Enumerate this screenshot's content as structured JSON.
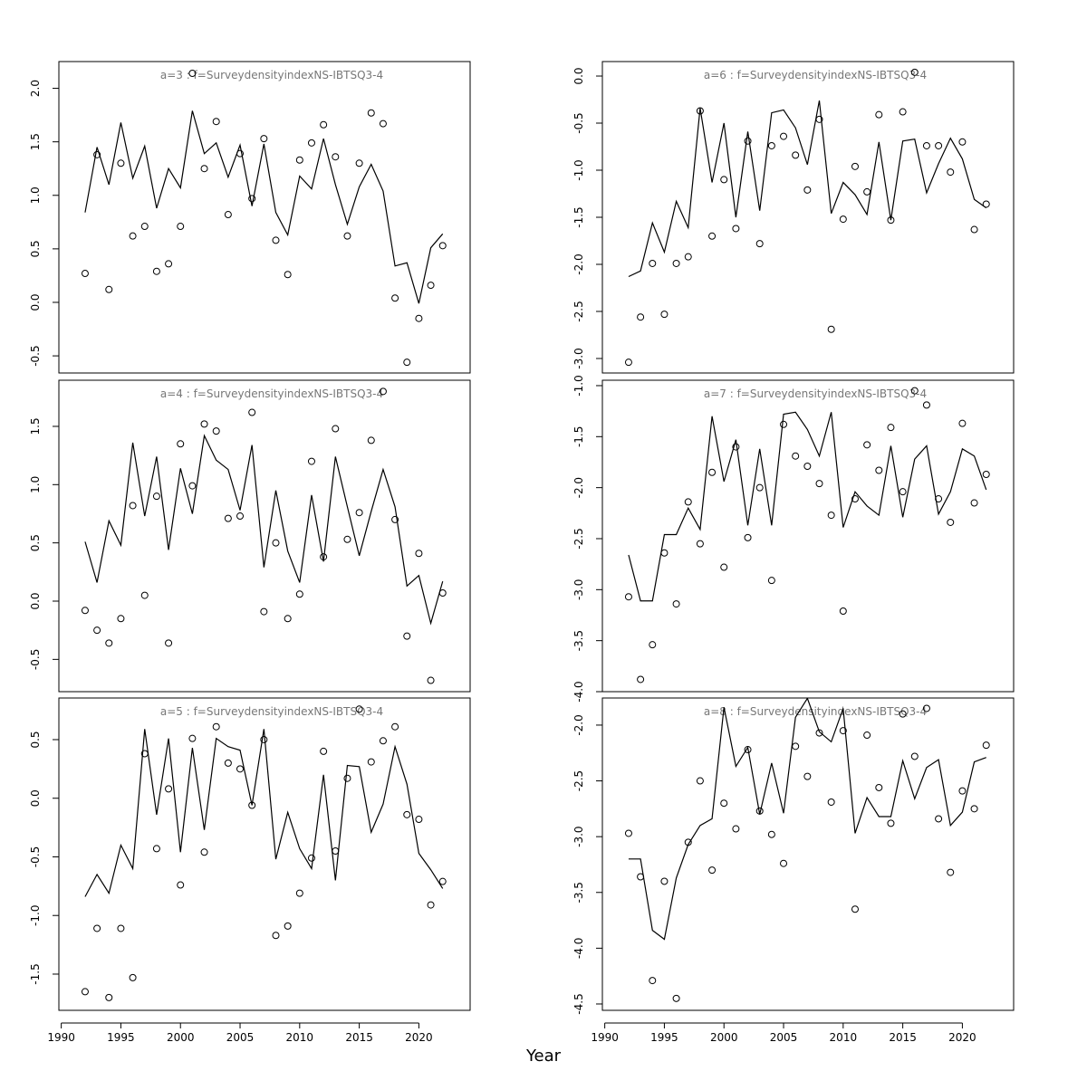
{
  "x_label": "Year",
  "chart_data": [
    {
      "type": "line",
      "title": "a=3  :  f=SurveydensityindexNS-IBTSQ3-4",
      "x": [
        1992,
        1993,
        1994,
        1995,
        1996,
        1997,
        1998,
        1999,
        2000,
        2001,
        2002,
        2003,
        2004,
        2005,
        2006,
        2007,
        2008,
        2009,
        2010,
        2011,
        2012,
        2013,
        2014,
        2015,
        2016,
        2017,
        2018,
        2019,
        2020,
        2021,
        2022
      ],
      "xlim": [
        1989.8,
        2024.3
      ],
      "ylim": [
        -0.66,
        2.25
      ],
      "yticks": [
        -0.5,
        {
          "value": 0,
          "label": "0.0"
        },
        0.5,
        {
          "value": 1,
          "label": "1.0"
        },
        1.5,
        {
          "value": 2,
          "label": "2.0"
        }
      ],
      "series": [
        {
          "style": "line",
          "color": "#000000",
          "values": [
            0.84,
            1.45,
            1.1,
            1.68,
            1.16,
            1.46,
            0.88,
            1.25,
            1.07,
            1.79,
            1.39,
            1.49,
            1.17,
            1.47,
            0.9,
            1.48,
            0.84,
            0.63,
            1.18,
            1.06,
            1.53,
            1.1,
            0.73,
            1.08,
            1.29,
            1.04,
            0.34,
            0.37,
            -0.01,
            0.51,
            0.64
          ]
        },
        {
          "style": "points",
          "color": "#000000",
          "values": [
            0.27,
            1.38,
            0.12,
            1.3,
            0.62,
            0.71,
            0.29,
            0.36,
            0.71,
            2.14,
            1.25,
            1.69,
            0.82,
            1.39,
            0.97,
            1.53,
            0.58,
            0.26,
            1.33,
            1.49,
            1.66,
            1.36,
            0.62,
            1.3,
            1.77,
            1.67,
            0.04,
            -0.56,
            -0.15,
            0.16,
            0.53
          ]
        }
      ]
    },
    {
      "type": "line",
      "title": "a=4  :  f=SurveydensityindexNS-IBTSQ3-4",
      "x": [
        1992,
        1993,
        1994,
        1995,
        1996,
        1997,
        1998,
        1999,
        2000,
        2001,
        2002,
        2003,
        2004,
        2005,
        2006,
        2007,
        2008,
        2009,
        2010,
        2011,
        2012,
        2013,
        2014,
        2015,
        2016,
        2017,
        2018,
        2019,
        2020,
        2021,
        2022
      ],
      "xlim": [
        1989.8,
        2024.3
      ],
      "ylim": [
        -0.777,
        1.896
      ],
      "yticks": [
        -0.5,
        {
          "value": 0,
          "label": "0.0"
        },
        0.5,
        {
          "value": 1,
          "label": "1.0"
        },
        1.5
      ],
      "series": [
        {
          "style": "line",
          "color": "#000000",
          "values": [
            0.51,
            0.16,
            0.69,
            0.48,
            1.36,
            0.73,
            1.24,
            0.44,
            1.14,
            0.75,
            1.42,
            1.21,
            1.13,
            0.78,
            1.34,
            0.29,
            0.95,
            0.43,
            0.16,
            0.91,
            0.34,
            1.24,
            0.81,
            0.39,
            0.77,
            1.13,
            0.81,
            0.13,
            0.22,
            -0.19,
            0.17
          ]
        },
        {
          "style": "points",
          "color": "#000000",
          "values": [
            -0.08,
            -0.25,
            -0.36,
            -0.15,
            0.82,
            0.05,
            0.9,
            -0.36,
            1.35,
            0.99,
            1.52,
            1.46,
            0.71,
            0.73,
            1.62,
            -0.09,
            0.5,
            -0.15,
            0.06,
            1.2,
            0.38,
            1.48,
            0.53,
            0.76,
            1.38,
            1.8,
            0.7,
            -0.3,
            0.41,
            -0.68,
            0.07
          ]
        }
      ]
    },
    {
      "type": "line",
      "title": "a=5  :  f=SurveydensityindexNS-IBTSQ3-4",
      "x": [
        1992,
        1993,
        1994,
        1995,
        1996,
        1997,
        1998,
        1999,
        2000,
        2001,
        2002,
        2003,
        2004,
        2005,
        2006,
        2007,
        2008,
        2009,
        2010,
        2011,
        2012,
        2013,
        2014,
        2015,
        2016,
        2017,
        2018,
        2019,
        2020,
        2021,
        2022
      ],
      "xlim": [
        1989.8,
        2024.3
      ],
      "ylim": [
        -1.809,
        0.855
      ],
      "xticks": [
        1990,
        1995,
        2000,
        2005,
        2010,
        2015,
        2020
      ],
      "yticks": [
        -1.5,
        {
          "value": -1,
          "label": "-1.0"
        },
        -0.5,
        {
          "value": 0,
          "label": "0.0"
        },
        0.5
      ],
      "series": [
        {
          "style": "line",
          "color": "#000000",
          "values": [
            -0.84,
            -0.65,
            -0.81,
            -0.4,
            -0.6,
            0.59,
            -0.14,
            0.51,
            -0.46,
            0.43,
            -0.27,
            0.51,
            0.44,
            0.41,
            -0.06,
            0.59,
            -0.52,
            -0.12,
            -0.43,
            -0.6,
            0.2,
            -0.7,
            0.28,
            0.27,
            -0.29,
            -0.05,
            0.44,
            0.12,
            -0.47,
            -0.61,
            -0.77
          ]
        },
        {
          "style": "points",
          "color": "#000000",
          "values": [
            -1.65,
            -1.11,
            -1.7,
            -1.11,
            -1.53,
            0.38,
            -0.43,
            0.08,
            -0.74,
            0.51,
            -0.46,
            0.61,
            0.3,
            0.25,
            -0.06,
            0.5,
            -1.17,
            -1.09,
            -0.81,
            -0.51,
            0.4,
            -0.45,
            0.17,
            0.76,
            0.31,
            0.49,
            0.61,
            -0.14,
            -0.18,
            -0.91,
            -0.71
          ]
        }
      ]
    },
    {
      "type": "line",
      "title": "a=6  :  f=SurveydensityindexNS-IBTSQ3-4",
      "x": [
        1992,
        1993,
        1994,
        1995,
        1996,
        1997,
        1998,
        1999,
        2000,
        2001,
        2002,
        2003,
        2004,
        2005,
        2006,
        2007,
        2008,
        2009,
        2010,
        2011,
        2012,
        2013,
        2014,
        2015,
        2016,
        2017,
        2018,
        2019,
        2020,
        2021,
        2022
      ],
      "xlim": [
        1989.8,
        2024.3
      ],
      "ylim": [
        -3.154,
        0.154
      ],
      "yticks": [
        {
          "value": -3,
          "label": "-3.0"
        },
        -2.5,
        {
          "value": -2,
          "label": "-2.0"
        },
        -1.5,
        {
          "value": -1,
          "label": "-1.0"
        },
        -0.5,
        {
          "value": 0,
          "label": "0.0"
        }
      ],
      "series": [
        {
          "style": "line",
          "color": "#000000",
          "values": [
            -2.13,
            -2.07,
            -1.56,
            -1.87,
            -1.33,
            -1.61,
            -0.34,
            -1.13,
            -0.5,
            -1.5,
            -0.59,
            -1.43,
            -0.39,
            -0.36,
            -0.55,
            -0.94,
            -0.26,
            -1.46,
            -1.13,
            -1.26,
            -1.47,
            -0.7,
            -1.53,
            -0.69,
            -0.67,
            -1.24,
            -0.93,
            -0.66,
            -0.88,
            -1.31,
            -1.4
          ]
        },
        {
          "style": "points",
          "color": "#000000",
          "values": [
            -3.04,
            -2.56,
            -1.99,
            -2.53,
            -1.99,
            -1.92,
            -0.37,
            -1.7,
            -1.1,
            -1.62,
            -0.69,
            -1.78,
            -0.74,
            -0.64,
            -0.84,
            -1.21,
            -0.46,
            -2.69,
            -1.52,
            -0.96,
            -1.23,
            -0.41,
            -1.53,
            -0.38,
            0.04,
            -0.74,
            -0.74,
            -1.02,
            -0.7,
            -1.63,
            -1.36
          ]
        }
      ]
    },
    {
      "type": "line",
      "title": "a=7  :  f=SurveydensityindexNS-IBTSQ3-4",
      "x": [
        1992,
        1993,
        1994,
        1995,
        1996,
        1997,
        1998,
        1999,
        2000,
        2001,
        2002,
        2003,
        2004,
        2005,
        2006,
        2007,
        2008,
        2009,
        2010,
        2011,
        2012,
        2013,
        2014,
        2015,
        2016,
        2017,
        2018,
        2019,
        2020,
        2021,
        2022
      ],
      "xlim": [
        1989.8,
        2024.3
      ],
      "ylim": [
        -4.0,
        -0.947
      ],
      "yticks": [
        {
          "value": -4,
          "label": "-4.0"
        },
        -3.5,
        {
          "value": -3,
          "label": "-3.0"
        },
        -2.5,
        {
          "value": -2,
          "label": "-2.0"
        },
        -1.5,
        {
          "value": -1,
          "label": "-1.0"
        }
      ],
      "series": [
        {
          "style": "line",
          "color": "#000000",
          "values": [
            -2.66,
            -3.11,
            -3.11,
            -2.46,
            -2.46,
            -2.2,
            -2.41,
            -1.3,
            -1.94,
            -1.53,
            -2.37,
            -1.62,
            -2.37,
            -1.28,
            -1.26,
            -1.43,
            -1.69,
            -1.26,
            -2.39,
            -2.04,
            -2.18,
            -2.27,
            -1.59,
            -2.29,
            -1.72,
            -1.59,
            -2.26,
            -2.04,
            -1.62,
            -1.69,
            -2.02
          ]
        },
        {
          "style": "points",
          "color": "#000000",
          "values": [
            -3.07,
            -3.88,
            -3.54,
            -2.64,
            -3.14,
            -2.14,
            -2.55,
            -1.85,
            -2.78,
            -1.6,
            -2.49,
            -2.0,
            -2.91,
            -1.38,
            -1.69,
            -1.79,
            -1.96,
            -2.27,
            -3.21,
            -2.11,
            -1.58,
            -1.83,
            -1.41,
            -2.04,
            -1.05,
            -1.19,
            -2.11,
            -2.34,
            -1.37,
            -2.15,
            -1.87
          ]
        }
      ]
    },
    {
      "type": "line",
      "title": "a=8  :  f=SurveydensityindexNS-IBTSQ3-4",
      "x": [
        1992,
        1993,
        1994,
        1995,
        1996,
        1997,
        1998,
        1999,
        2000,
        2001,
        2002,
        2003,
        2004,
        2005,
        2006,
        2007,
        2008,
        2009,
        2010,
        2011,
        2012,
        2013,
        2014,
        2015,
        2016,
        2017,
        2018,
        2019,
        2020,
        2021,
        2022
      ],
      "xlim": [
        1989.8,
        2024.3
      ],
      "ylim": [
        -4.557,
        -1.757
      ],
      "xticks": [
        1990,
        1995,
        2000,
        2005,
        2010,
        2015,
        2020
      ],
      "yticks": [
        -4.5,
        {
          "value": -4,
          "label": "-4.0"
        },
        -3.5,
        {
          "value": -3,
          "label": "-3.0"
        },
        -2.5,
        {
          "value": -2,
          "label": "-2.0"
        }
      ],
      "series": [
        {
          "style": "line",
          "color": "#000000",
          "values": [
            -3.2,
            -3.2,
            -3.84,
            -3.92,
            -3.37,
            -3.07,
            -2.9,
            -2.84,
            -1.84,
            -2.37,
            -2.2,
            -2.8,
            -2.34,
            -2.79,
            -1.93,
            -1.76,
            -2.06,
            -2.15,
            -1.85,
            -2.97,
            -2.65,
            -2.82,
            -2.82,
            -2.32,
            -2.66,
            -2.38,
            -2.31,
            -2.9,
            -2.78,
            -2.33,
            -2.29
          ]
        },
        {
          "style": "points",
          "color": "#000000",
          "values": [
            -2.97,
            -3.36,
            -4.29,
            -3.4,
            -4.45,
            -3.05,
            -2.5,
            -3.3,
            -2.7,
            -2.93,
            -2.22,
            -2.77,
            -2.98,
            -3.24,
            -2.19,
            -2.46,
            -2.07,
            -2.69,
            -2.05,
            -3.65,
            -2.09,
            -2.56,
            -2.88,
            -1.9,
            -2.28,
            -1.85,
            -2.84,
            -3.32,
            -2.59,
            -2.75,
            -2.18
          ]
        }
      ]
    }
  ]
}
